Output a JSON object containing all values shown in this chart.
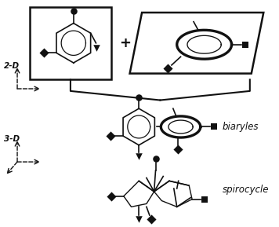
{
  "bg_color": "#ffffff",
  "line_color": "#111111",
  "label_2d": "2-D",
  "label_3d": "3-D",
  "label_biaryles": "biaryles",
  "label_spirocycle": "spirocycle"
}
